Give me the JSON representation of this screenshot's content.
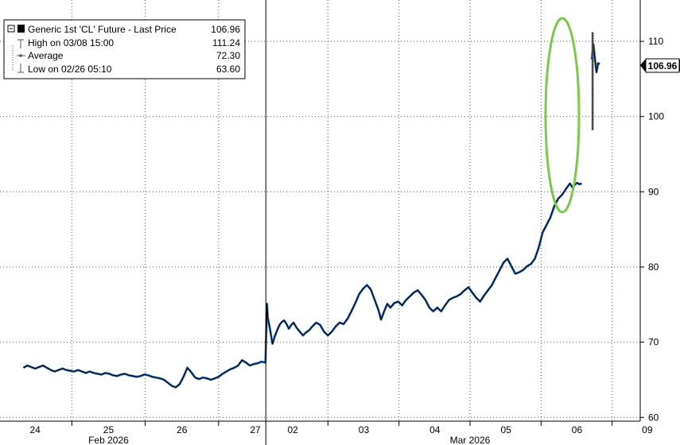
{
  "chart_data": {
    "type": "line",
    "series": [
      {
        "name": "Generic 1st 'CL' Future - Last Price",
        "last": "106.96",
        "points": [
          [
            0.0,
            66.6
          ],
          [
            0.05,
            66.9
          ],
          [
            0.1,
            66.7
          ],
          [
            0.15,
            66.5
          ],
          [
            0.2,
            66.7
          ],
          [
            0.25,
            66.9
          ],
          [
            0.3,
            66.6
          ],
          [
            0.35,
            66.3
          ],
          [
            0.4,
            66.1
          ],
          [
            0.45,
            66.3
          ],
          [
            0.5,
            66.5
          ],
          [
            0.55,
            66.3
          ],
          [
            0.6,
            66.2
          ],
          [
            0.65,
            66.1
          ],
          [
            0.7,
            66.3
          ],
          [
            0.75,
            66.1
          ],
          [
            0.8,
            65.9
          ],
          [
            0.85,
            66.1
          ],
          [
            0.9,
            65.9
          ],
          [
            0.95,
            65.8
          ],
          [
            1.0,
            65.7
          ],
          [
            1.05,
            65.9
          ],
          [
            1.1,
            65.8
          ],
          [
            1.15,
            65.6
          ],
          [
            1.2,
            65.5
          ],
          [
            1.25,
            65.7
          ],
          [
            1.3,
            65.8
          ],
          [
            1.35,
            65.6
          ],
          [
            1.4,
            65.5
          ],
          [
            1.45,
            65.4
          ],
          [
            1.5,
            65.5
          ],
          [
            1.55,
            65.7
          ],
          [
            1.6,
            65.6
          ],
          [
            1.65,
            65.4
          ],
          [
            1.7,
            65.3
          ],
          [
            1.75,
            65.2
          ],
          [
            1.8,
            65.0
          ],
          [
            1.85,
            64.6
          ],
          [
            1.9,
            64.2
          ],
          [
            1.95,
            64.0
          ],
          [
            2.0,
            64.4
          ],
          [
            2.05,
            65.4
          ],
          [
            2.1,
            66.6
          ],
          [
            2.15,
            66.0
          ],
          [
            2.2,
            65.3
          ],
          [
            2.25,
            65.1
          ],
          [
            2.3,
            65.3
          ],
          [
            2.35,
            65.2
          ],
          [
            2.4,
            65.0
          ],
          [
            2.45,
            65.2
          ],
          [
            2.5,
            65.4
          ],
          [
            2.55,
            65.8
          ],
          [
            2.6,
            66.1
          ],
          [
            2.65,
            66.4
          ],
          [
            2.7,
            66.6
          ],
          [
            2.75,
            66.9
          ],
          [
            2.8,
            67.6
          ],
          [
            2.85,
            67.3
          ],
          [
            2.9,
            66.9
          ],
          [
            2.95,
            67.1
          ],
          [
            3.0,
            67.2
          ],
          [
            3.05,
            67.4
          ],
          [
            3.1,
            67.3
          ],
          [
            3.12,
            75.1
          ],
          [
            3.13,
            73.2
          ],
          [
            3.15,
            72.2
          ],
          [
            3.17,
            71.0
          ],
          [
            3.19,
            69.8
          ],
          [
            3.22,
            70.8
          ],
          [
            3.25,
            71.6
          ],
          [
            3.28,
            72.3
          ],
          [
            3.31,
            72.7
          ],
          [
            3.34,
            72.9
          ],
          [
            3.37,
            72.4
          ],
          [
            3.4,
            71.8
          ],
          [
            3.43,
            72.3
          ],
          [
            3.46,
            72.6
          ],
          [
            3.5,
            71.9
          ],
          [
            3.54,
            71.4
          ],
          [
            3.58,
            70.9
          ],
          [
            3.62,
            71.3
          ],
          [
            3.66,
            71.6
          ],
          [
            3.7,
            72.1
          ],
          [
            3.75,
            72.6
          ],
          [
            3.8,
            72.3
          ],
          [
            3.85,
            71.4
          ],
          [
            3.9,
            70.9
          ],
          [
            3.95,
            71.4
          ],
          [
            4.0,
            72.1
          ],
          [
            4.05,
            72.6
          ],
          [
            4.1,
            72.4
          ],
          [
            4.15,
            73.1
          ],
          [
            4.2,
            74.1
          ],
          [
            4.25,
            75.2
          ],
          [
            4.3,
            76.4
          ],
          [
            4.35,
            77.1
          ],
          [
            4.4,
            77.6
          ],
          [
            4.45,
            77.0
          ],
          [
            4.5,
            75.6
          ],
          [
            4.55,
            74.2
          ],
          [
            4.58,
            73.0
          ],
          [
            4.62,
            74.1
          ],
          [
            4.66,
            75.1
          ],
          [
            4.7,
            74.6
          ],
          [
            4.75,
            75.2
          ],
          [
            4.8,
            75.4
          ],
          [
            4.85,
            74.9
          ],
          [
            4.9,
            75.6
          ],
          [
            4.95,
            76.1
          ],
          [
            5.0,
            76.6
          ],
          [
            5.05,
            76.9
          ],
          [
            5.1,
            76.3
          ],
          [
            5.15,
            75.6
          ],
          [
            5.2,
            74.6
          ],
          [
            5.25,
            74.1
          ],
          [
            5.3,
            74.6
          ],
          [
            5.35,
            74.1
          ],
          [
            5.4,
            74.9
          ],
          [
            5.45,
            75.6
          ],
          [
            5.5,
            75.9
          ],
          [
            5.55,
            76.1
          ],
          [
            5.6,
            76.4
          ],
          [
            5.65,
            76.9
          ],
          [
            5.7,
            77.3
          ],
          [
            5.75,
            76.6
          ],
          [
            5.8,
            75.9
          ],
          [
            5.85,
            75.4
          ],
          [
            5.9,
            76.2
          ],
          [
            5.95,
            76.9
          ],
          [
            6.0,
            77.6
          ],
          [
            6.05,
            78.6
          ],
          [
            6.1,
            79.6
          ],
          [
            6.15,
            80.6
          ],
          [
            6.2,
            81.1
          ],
          [
            6.25,
            80.1
          ],
          [
            6.3,
            79.1
          ],
          [
            6.35,
            79.3
          ],
          [
            6.4,
            79.6
          ],
          [
            6.45,
            80.1
          ],
          [
            6.5,
            80.4
          ],
          [
            6.55,
            81.1
          ],
          [
            6.6,
            82.6
          ],
          [
            6.65,
            84.6
          ],
          [
            6.7,
            85.6
          ],
          [
            6.75,
            86.6
          ],
          [
            6.8,
            88.1
          ],
          [
            6.85,
            89.1
          ],
          [
            6.9,
            89.6
          ],
          [
            6.95,
            90.4
          ],
          [
            7.0,
            91.1
          ],
          [
            7.03,
            90.6
          ],
          [
            7.06,
            90.9
          ],
          [
            7.09,
            91.2
          ],
          [
            7.12,
            91.0
          ],
          [
            7.15,
            91.1
          ],
          [
            7.28,
            107.6
          ],
          [
            7.3,
            109.6
          ],
          [
            7.32,
            107.6
          ],
          [
            7.34,
            105.9
          ],
          [
            7.36,
            107.1
          ],
          [
            7.38,
            106.96
          ]
        ],
        "spike": {
          "x": 7.29,
          "low": 98.2,
          "high": 111.24
        }
      }
    ],
    "legend": {
      "placement": "top-left",
      "title": "Generic 1st 'CL' Future - Last Price",
      "title_value": "106.96",
      "rows": [
        {
          "label": "High on 03/08 15:00",
          "value": "111.24"
        },
        {
          "label": "Average",
          "value": "72.30"
        },
        {
          "label": "Low on 02/26 05:10",
          "value": "63.60"
        }
      ]
    },
    "last_label": "106.96",
    "ylim": [
      59.5,
      115.5
    ],
    "yticks": [
      {
        "v": 60,
        "label": "60"
      },
      {
        "v": 70,
        "label": "70"
      },
      {
        "v": 80,
        "label": "80"
      },
      {
        "v": 90,
        "label": "90"
      },
      {
        "v": 100,
        "label": "100"
      },
      {
        "v": 110,
        "label": "110"
      }
    ],
    "xlim": [
      -0.3,
      7.9
    ],
    "xticks": [
      {
        "v": 0.15,
        "label": "24"
      },
      {
        "v": 1.09,
        "label": "25"
      },
      {
        "v": 2.03,
        "label": "26"
      },
      {
        "v": 2.97,
        "label": "27"
      },
      {
        "v": 3.45,
        "label": "02"
      },
      {
        "v": 4.36,
        "label": "03"
      },
      {
        "v": 5.27,
        "label": "04"
      },
      {
        "v": 6.18,
        "label": "05"
      },
      {
        "v": 7.09,
        "label": "06"
      },
      {
        "v": 7.99,
        "label": "09"
      }
    ],
    "month_labels": [
      {
        "v": 1.09,
        "label": "Feb 2026"
      },
      {
        "v": 5.72,
        "label": "Mar 2026"
      }
    ],
    "grid": true,
    "colors": {
      "line": "#000000",
      "line_highlight": "#1f6fc5",
      "annotation": "#7cc84a",
      "grid": "#555555"
    }
  }
}
